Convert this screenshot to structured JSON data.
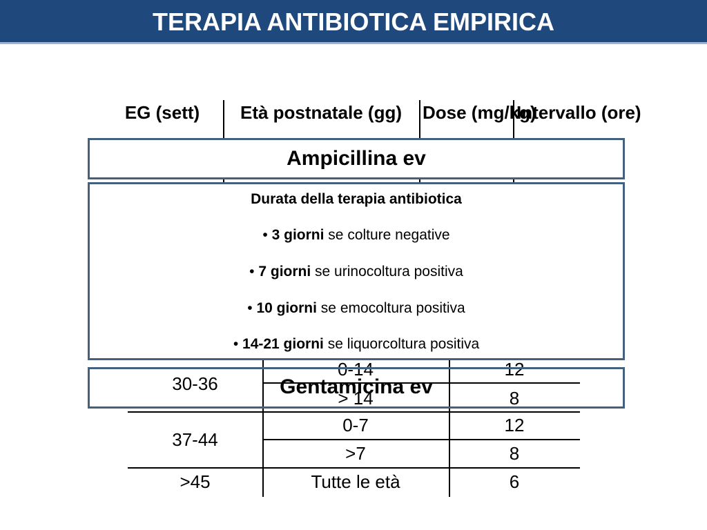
{
  "title": "TERAPIA ANTIBIOTICA EMPIRICA",
  "table_header": {
    "col1": "EG (sett)",
    "col2": "Età postnatale (gg)",
    "col3": "Dose (mg/kg)",
    "col4": "Intervallo (ore)"
  },
  "ampicillin_label": "Ampicillina ev",
  "therapy_note": {
    "title": "Durata della terapia antibiotica",
    "bullet": "•",
    "items": [
      {
        "bold": "3 giorni",
        "text": " se colture negative"
      },
      {
        "bold": "7 giorni",
        "text": " se urinocoltura positiva"
      },
      {
        "bold": "10 giorni",
        "text": " se emocoltura positiva"
      },
      {
        "bold": "14-21 giorni",
        "text": " se liquorcoltura positiva"
      }
    ]
  },
  "gentamicin_label": "Gentamicina ev",
  "rows": [
    {
      "eg": "30-36",
      "age": "0-14",
      "interval": "12"
    },
    {
      "eg": "",
      "age": "> 14",
      "interval": "8"
    },
    {
      "eg": "37-44",
      "age": "0-7",
      "interval": "12"
    },
    {
      "eg": "",
      "age": ">7",
      "interval": "8"
    },
    {
      "eg": ">45",
      "age": "Tutte le età",
      "interval": "6"
    }
  ]
}
